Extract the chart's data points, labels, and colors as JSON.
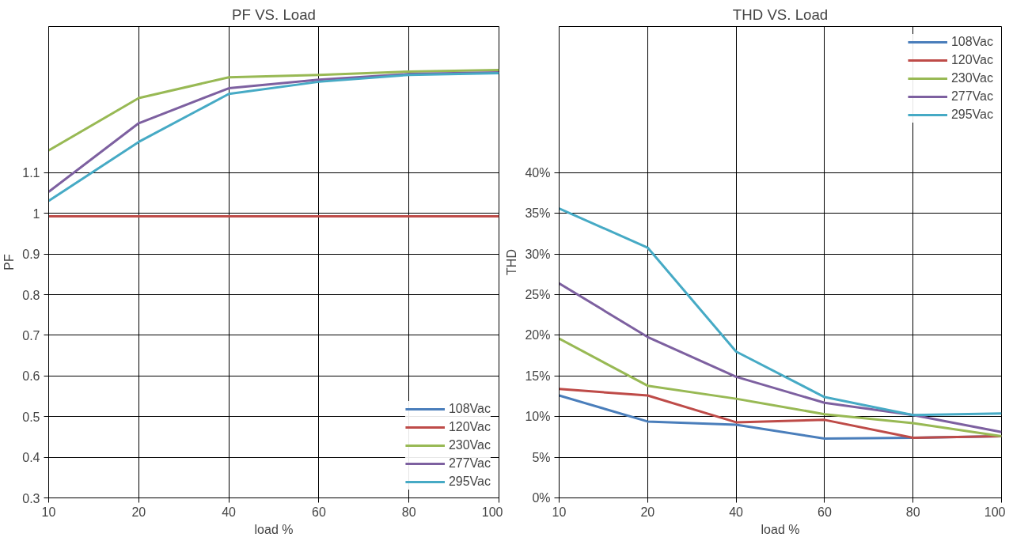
{
  "chart_data": [
    {
      "type": "line",
      "title": "PF VS. Load",
      "xlabel": "load %",
      "ylabel": "PF",
      "categories": [
        "10",
        "20",
        "40",
        "60",
        "80",
        "100"
      ],
      "ylim": [
        0.3,
        1.46
      ],
      "yticks": [
        0.3,
        0.4,
        0.5,
        0.6,
        0.7,
        0.8,
        0.9,
        1,
        1.1
      ],
      "grid": true,
      "legend": "bottom right",
      "line_style": "solid",
      "marker": "none",
      "series": [
        {
          "name": "108Vac",
          "color": "#4a7ebb",
          "values": [
            null,
            null,
            null,
            null,
            null,
            null
          ]
        },
        {
          "name": "120Vac",
          "color": "#be4b48",
          "values": [
            0.993,
            0.993,
            0.993,
            0.993,
            0.993,
            0.993
          ]
        },
        {
          "name": "230Vac",
          "color": "#98b954",
          "values": [
            1.155,
            1.284,
            1.335,
            1.341,
            1.349,
            1.353
          ]
        },
        {
          "name": "277Vac",
          "color": "#7d60a0",
          "values": [
            1.053,
            1.222,
            1.308,
            1.329,
            1.343,
            1.347
          ]
        },
        {
          "name": "295Vac",
          "color": "#46aac5",
          "values": [
            1.031,
            1.176,
            1.294,
            1.324,
            1.341,
            1.345
          ]
        }
      ]
    },
    {
      "type": "line",
      "title": "THD VS. Load",
      "xlabel": "load %",
      "ylabel": "THD",
      "categories": [
        "10",
        "20",
        "40",
        "60",
        "80",
        "100"
      ],
      "ylim": [
        0,
        58
      ],
      "yticks": [
        {
          "value": 0,
          "label": "0%"
        },
        {
          "value": 5,
          "label": "5%"
        },
        {
          "value": 10,
          "label": "10%"
        },
        {
          "value": 15,
          "label": "15%"
        },
        {
          "value": 20,
          "label": "20%"
        },
        {
          "value": 25,
          "label": "25%"
        },
        {
          "value": 30,
          "label": "30%"
        },
        {
          "value": 35,
          "label": "35%"
        },
        {
          "value": 40,
          "label": "40%"
        }
      ],
      "grid": true,
      "legend": "top right",
      "line_style": "solid",
      "marker": "none",
      "series": [
        {
          "name": "108Vac",
          "color": "#4a7ebb",
          "values": [
            12.6,
            9.4,
            9.0,
            7.3,
            7.4,
            7.6
          ]
        },
        {
          "name": "120Vac",
          "color": "#be4b48",
          "values": [
            13.4,
            12.6,
            9.3,
            9.6,
            7.4,
            7.6
          ]
        },
        {
          "name": "230Vac",
          "color": "#98b954",
          "values": [
            19.6,
            13.8,
            12.2,
            10.3,
            9.2,
            7.6
          ]
        },
        {
          "name": "277Vac",
          "color": "#7d60a0",
          "values": [
            26.4,
            19.8,
            14.9,
            11.7,
            10.2,
            8.1
          ]
        },
        {
          "name": "295Vac",
          "color": "#46aac5",
          "values": [
            35.6,
            30.8,
            18.0,
            12.4,
            10.2,
            10.4
          ]
        }
      ]
    }
  ]
}
